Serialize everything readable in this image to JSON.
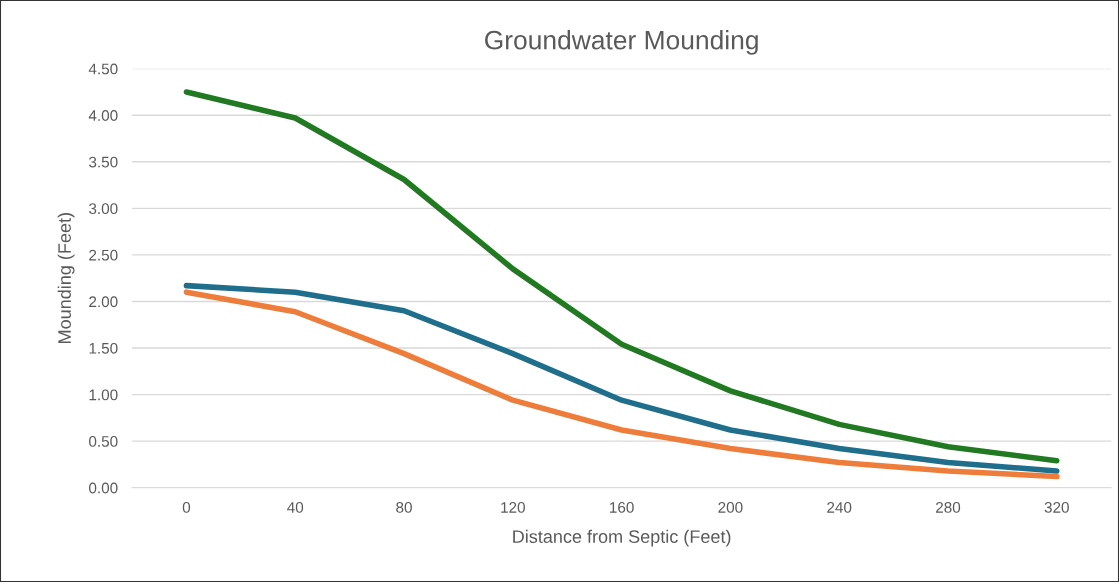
{
  "chart_data": {
    "type": "line",
    "title": "Groundwater Mounding",
    "xlabel": "Distance from Septic (Feet)",
    "ylabel": "Mounding (Feet)",
    "categories": [
      "0",
      "40",
      "80",
      "120",
      "160",
      "200",
      "240",
      "280",
      "320"
    ],
    "series": [
      {
        "color": "#217a21",
        "values": [
          4.25,
          3.97,
          3.31,
          2.35,
          1.54,
          1.04,
          0.68,
          0.44,
          0.29
        ]
      },
      {
        "color": "#1f6e8c",
        "values": [
          2.17,
          2.1,
          1.9,
          1.44,
          0.94,
          0.62,
          0.42,
          0.27,
          0.18
        ]
      },
      {
        "color": "#ee7d3b",
        "values": [
          2.1,
          1.89,
          1.44,
          0.94,
          0.62,
          0.42,
          0.27,
          0.18,
          0.12
        ]
      }
    ],
    "ylim": [
      0,
      4.5
    ],
    "yticks": [
      {
        "value": 0,
        "label": "0.00"
      },
      {
        "value": 0.5,
        "label": "0.50"
      },
      {
        "value": 1,
        "label": "1.00"
      },
      {
        "value": 1.5,
        "label": "1.50"
      },
      {
        "value": 2,
        "label": "2.00"
      },
      {
        "value": 2.5,
        "label": "2.50"
      },
      {
        "value": 3,
        "label": "3.00"
      },
      {
        "value": 3.5,
        "label": "3.50"
      },
      {
        "value": 4,
        "label": "4.00"
      },
      {
        "value": 4.5,
        "label": "4.50"
      }
    ],
    "grid": "y",
    "marker": "none",
    "line_style": "solid"
  }
}
